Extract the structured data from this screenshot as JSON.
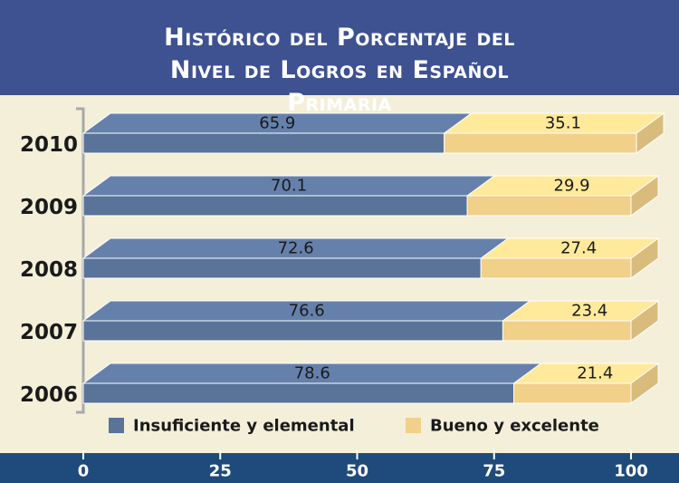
{
  "chart_data": {
    "type": "stacked-bar-3d",
    "title": "Histórico del Porcentaje del Nivel de Logros en Español Primaria",
    "categories": [
      "2010",
      "2009",
      "2008",
      "2007",
      "2006"
    ],
    "series": [
      {
        "name": "Insuficiente y elemental",
        "color": "#5a7399",
        "values": [
          65.9,
          70.1,
          72.6,
          76.6,
          78.6
        ]
      },
      {
        "name": "Bueno y excelente",
        "color": "#f1d08a",
        "values": [
          35.1,
          29.9,
          27.4,
          23.4,
          21.4
        ]
      }
    ],
    "xlim": [
      0,
      100
    ],
    "xticks": [
      0,
      25,
      50,
      75,
      100
    ]
  }
}
